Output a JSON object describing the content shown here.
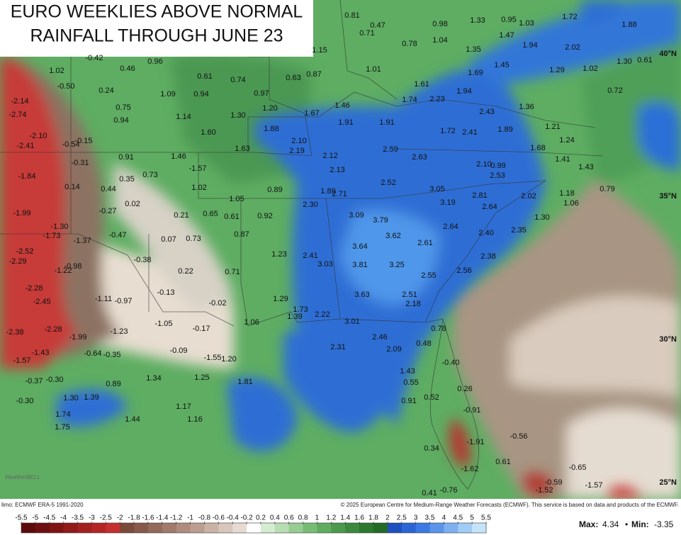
{
  "header": {
    "title_lines": [
      "EURO WEEKLIES ABOVE NORMAL",
      "RAINFALL THROUGH JUNE 23"
    ]
  },
  "map": {
    "labels": [
      "0.81",
      "0.47",
      "0.71",
      "0.98",
      "1.33",
      "0.95",
      "1.03",
      "1.72",
      "1.88",
      "0.78",
      "1.04",
      "1.15",
      "1.35",
      "1.47",
      "1.94",
      "2.02",
      "1.30",
      "0.61",
      "-0.42",
      "0.46",
      "0.96",
      "1.02",
      "-0.50",
      "0.24",
      "0.61",
      "0.74",
      "0.63",
      "0.87",
      "1.01",
      "1.45",
      "1.29",
      "1.02",
      "1.69",
      "1.61",
      "0.72",
      "-2.14",
      "-2.74",
      "0.75",
      "1.09",
      "0.94",
      "0.97",
      "1.74",
      "2.23",
      "1.94",
      "1.46",
      "1.36",
      "0.94",
      "1.14",
      "1.30",
      "1.20",
      "1.67",
      "1.91",
      "1.91",
      "2.43",
      "-2.10",
      "-2.41",
      "-0.54",
      "-0.15",
      "1.60",
      "1.88",
      "1.72",
      "2.41",
      "1.89",
      "1.21",
      "1.24",
      "1.63",
      "2.10",
      "2.19",
      "2.59",
      "2.63",
      "1.68",
      "0.91",
      "1.46",
      "-0.31",
      "2.12",
      "2.10",
      "0.99",
      "1.41",
      "1.43",
      "-1.84",
      "0.35",
      "0.73",
      "-1.57",
      "2.13",
      "2.53",
      "0.14",
      "0.44",
      "1.02",
      "0.89",
      "1.89",
      "2.71",
      "2.52",
      "3.05",
      "1.18",
      "0.79",
      "1.06",
      "2.81",
      "2.02",
      "0.02",
      "-0.27",
      "1.05",
      "-1.99",
      "0.21",
      "0.65",
      "0.61",
      "0.92",
      "2.30",
      "3.09",
      "3.79",
      "3.19",
      "2.64",
      "1.30",
      "-1.30",
      "-1.73",
      "-0.47",
      "0.07",
      "0.73",
      "0.87",
      "3.62",
      "2.64",
      "2.40",
      "2.35",
      "-1.37",
      "-2.52",
      "-2.29",
      "3.64",
      "2.61",
      "-0.38",
      "1.23",
      "2.41",
      "2.38",
      "-1.22",
      "-0.98",
      "0.22",
      "0.71",
      "3.03",
      "3.81",
      "3.25",
      "2.55",
      "2.56",
      "-2.28",
      "-0.13",
      "-1.11",
      "-0.97",
      "-2.45",
      "-0.02",
      "1.29",
      "3.63",
      "2.51",
      "2.18",
      "-1.05",
      "1.73",
      "2.22",
      "1.39",
      "1.06",
      "3.01",
      "-2.38",
      "-2.28",
      "-1.99",
      "-1.23",
      "-0.17",
      "0.78",
      "2.46",
      "2.31",
      "0.48",
      "2.09",
      "-1.43",
      "-0.64",
      "-0.35",
      "-0.09",
      "-1.55",
      "1.20",
      "-0.40",
      "-1.57",
      "1.43",
      "1.34",
      "1.25",
      "-0.37",
      "-0.30",
      "0.89",
      "1.81",
      "0.55",
      "0.26",
      "1.30",
      "1.39",
      "0.52",
      "0.91",
      "-0.30",
      "1.17",
      "-0.91",
      "1.74",
      "1.44",
      "1.16",
      "1.75",
      "-0.56",
      "-1.91",
      "0.34",
      "0.61",
      "-1.62",
      "-0.65",
      "-0.59",
      "-1.52",
      "-1.57",
      "0.41",
      "-0.76"
    ],
    "latitude_labels": [
      "40°N",
      "35°N",
      "30°N",
      "25°N"
    ]
  },
  "legend": {
    "ticks": [
      -5.5,
      -5,
      -4.5,
      -4,
      -3.5,
      -3,
      -2.5,
      -2,
      -1.8,
      -1.6,
      -1.4,
      -1.2,
      -1,
      -0.8,
      -0.6,
      -0.4,
      -0.2,
      0.2,
      0.4,
      0.6,
      0.8,
      1,
      1.2,
      1.4,
      1.6,
      1.8,
      2,
      2.5,
      3,
      3.5,
      4,
      4.5,
      5,
      5.5
    ],
    "colors": [
      "#5e0b0b",
      "#6e0f0f",
      "#801414",
      "#911a1a",
      "#a32020",
      "#b42626",
      "#c4302e",
      "#7a4a3a",
      "#86594a",
      "#93695a",
      "#a07a6b",
      "#ae8c7e",
      "#bc9e91",
      "#cab2a6",
      "#d8c6bc",
      "#e6dbd3",
      "#ffffff",
      "#d6ecd2",
      "#b8ddb3",
      "#97cc92",
      "#78bb76",
      "#5fab5f",
      "#4b9a4d",
      "#3b893d",
      "#2c782f",
      "#236a27",
      "#1f4fbf",
      "#2b65d4",
      "#3a7ae2",
      "#5a95ea",
      "#7cb0f0",
      "#a0ccf5",
      "#c5e4fa"
    ]
  },
  "footer": {
    "source": "limo: ECMWF ERA-5 1991-2020",
    "credit": "© 2025 European Centre for Medium-Range Weather Forecasts (ECMWF). This service is based on data and products of the ECMWF.",
    "logo": "WeatherBELL"
  },
  "stats": {
    "max_label": "Max:",
    "max": "4.34",
    "separator": "•",
    "min_label": "Min:",
    "min": "-3.35"
  }
}
